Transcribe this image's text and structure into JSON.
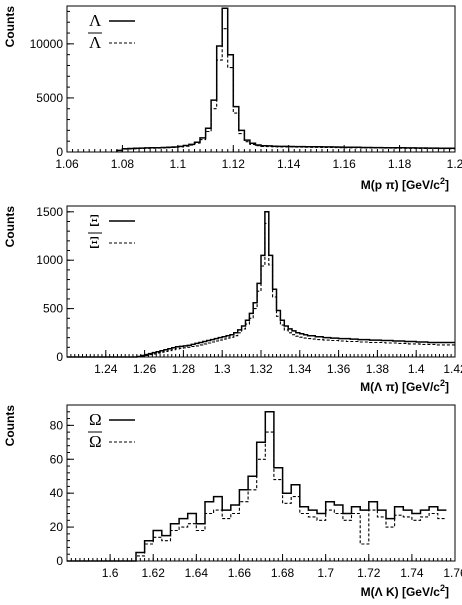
{
  "chart_data": [
    {
      "type": "histogram",
      "panel": "lambda",
      "xlabel": "M(p π) [GeV/c",
      "xlabel_sup": "2",
      "xlabel_end": "]",
      "ylabel": "Counts",
      "xlim": [
        1.06,
        1.2
      ],
      "ylim": [
        0,
        13500
      ],
      "xticks": [
        1.06,
        1.08,
        1.1,
        1.12,
        1.14,
        1.16,
        1.18,
        1.2
      ],
      "xtick_labels": [
        "1.06",
        "1.08",
        "1.1",
        "1.12",
        "1.14",
        "1.16",
        "1.18",
        "1.2"
      ],
      "yticks": [
        0,
        5000,
        10000
      ],
      "ytick_labels": [
        "0",
        "5000",
        "10000"
      ],
      "bin_width": 0.002,
      "x_start": 1.078,
      "legend": [
        {
          "symbol": "Λ",
          "overbar": false,
          "style": "solid"
        },
        {
          "symbol": "Λ",
          "overbar": true,
          "style": "dashed"
        }
      ],
      "series": [
        {
          "style": "solid",
          "values": [
            150,
            300,
            320,
            340,
            360,
            380,
            390,
            400,
            420,
            440,
            460,
            520,
            600,
            700,
            900,
            1300,
            2200,
            4800,
            9800,
            13300,
            9000,
            4200,
            2000,
            1100,
            800,
            650,
            580,
            560,
            540,
            520,
            520,
            510,
            500,
            500,
            490,
            480,
            480,
            470,
            470,
            460,
            450,
            440,
            440,
            430,
            420,
            420,
            410,
            410,
            400,
            400,
            390,
            390,
            380,
            380,
            370,
            370,
            360,
            360,
            350,
            350,
            340
          ]
        },
        {
          "style": "dashed",
          "values": [
            130,
            270,
            290,
            300,
            320,
            340,
            350,
            360,
            380,
            400,
            420,
            470,
            540,
            640,
            820,
            1150,
            1900,
            4000,
            8500,
            11400,
            7800,
            3600,
            1700,
            950,
            700,
            580,
            520,
            500,
            480,
            470,
            460,
            460,
            450,
            450,
            440,
            430,
            430,
            420,
            420,
            410,
            400,
            400,
            390,
            390,
            380,
            380,
            370,
            370,
            360,
            360,
            350,
            350,
            340,
            340,
            330,
            330,
            320,
            320,
            310,
            310,
            300
          ]
        }
      ]
    },
    {
      "type": "histogram",
      "panel": "xi",
      "xlabel": "M(Λ π) [GeV/c",
      "xlabel_sup": "2",
      "xlabel_end": "]",
      "ylabel": "Counts",
      "xlim": [
        1.22,
        1.42
      ],
      "ylim": [
        0,
        1560
      ],
      "xticks": [
        1.24,
        1.26,
        1.28,
        1.3,
        1.32,
        1.34,
        1.36,
        1.38,
        1.4,
        1.42
      ],
      "xtick_labels": [
        "1.24",
        "1.26",
        "1.28",
        "1.3",
        "1.32",
        "1.34",
        "1.36",
        "1.38",
        "1.4",
        "1.42"
      ],
      "yticks": [
        0,
        500,
        1000,
        1500
      ],
      "ytick_labels": [
        "0",
        "500",
        "1000",
        "1500"
      ],
      "bin_width": 0.002,
      "x_start": 1.22,
      "legend": [
        {
          "symbol": "Ξ",
          "overbar": false,
          "style": "solid"
        },
        {
          "symbol": "Ξ",
          "overbar": true,
          "style": "dashed"
        }
      ],
      "series": [
        {
          "style": "solid",
          "values": [
            0,
            0,
            0,
            0,
            0,
            0,
            0,
            0,
            0,
            0,
            0,
            0,
            0,
            0,
            0,
            0,
            0,
            0,
            5,
            15,
            25,
            35,
            45,
            55,
            65,
            75,
            85,
            95,
            105,
            110,
            115,
            120,
            130,
            140,
            150,
            160,
            170,
            180,
            190,
            200,
            210,
            220,
            230,
            250,
            280,
            320,
            380,
            450,
            560,
            760,
            1050,
            1500,
            1050,
            700,
            480,
            380,
            320,
            290,
            270,
            250,
            240,
            230,
            220,
            220,
            210,
            210,
            200,
            200,
            195,
            195,
            190,
            190,
            190,
            185,
            185,
            180,
            180,
            180,
            175,
            175,
            175,
            170,
            170,
            170,
            165,
            165,
            165,
            160,
            160,
            160,
            155,
            155,
            155,
            150,
            150,
            150,
            150,
            150,
            150,
            150
          ]
        },
        {
          "style": "dashed",
          "values": [
            0,
            0,
            0,
            0,
            0,
            0,
            0,
            0,
            0,
            0,
            0,
            0,
            0,
            0,
            0,
            0,
            0,
            0,
            2,
            8,
            15,
            25,
            32,
            40,
            50,
            58,
            66,
            75,
            85,
            90,
            95,
            100,
            108,
            115,
            125,
            135,
            145,
            155,
            165,
            175,
            185,
            195,
            205,
            220,
            250,
            290,
            340,
            400,
            500,
            680,
            940,
            1380,
            950,
            620,
            420,
            330,
            280,
            250,
            230,
            215,
            205,
            195,
            190,
            185,
            180,
            180,
            175,
            175,
            170,
            170,
            165,
            165,
            160,
            160,
            160,
            155,
            155,
            155,
            150,
            150,
            150,
            150,
            145,
            145,
            145,
            140,
            140,
            140,
            135,
            135,
            135,
            130,
            130,
            130,
            130,
            125,
            125,
            125,
            125,
            125,
            125
          ]
        }
      ]
    },
    {
      "type": "histogram",
      "panel": "omega",
      "xlabel": "M(Λ K) [GeV/c",
      "xlabel_sup": "2",
      "xlabel_end": "]",
      "ylabel": "Counts",
      "xlim": [
        1.58,
        1.76
      ],
      "ylim": [
        0,
        92
      ],
      "xticks": [
        1.6,
        1.62,
        1.64,
        1.66,
        1.68,
        1.7,
        1.72,
        1.74,
        1.76
      ],
      "xtick_labels": [
        "1.6",
        "1.62",
        "1.64",
        "1.66",
        "1.68",
        "1.7",
        "1.72",
        "1.74",
        "1.76"
      ],
      "yticks": [
        0,
        20,
        40,
        60,
        80
      ],
      "ytick_labels": [
        "0",
        "20",
        "40",
        "60",
        "80"
      ],
      "bin_width": 0.004,
      "x_start": 1.58,
      "legend": [
        {
          "symbol": "Ω",
          "overbar": false,
          "style": "solid"
        },
        {
          "symbol": "Ω",
          "overbar": true,
          "style": "dashed"
        }
      ],
      "series": [
        {
          "style": "solid",
          "values": [
            0,
            0,
            0,
            0,
            0,
            0,
            0,
            0,
            5,
            12,
            18,
            15,
            22,
            25,
            28,
            22,
            35,
            38,
            30,
            33,
            42,
            50,
            70,
            88,
            55,
            40,
            45,
            32,
            30,
            28,
            35,
            33,
            28,
            32,
            30,
            35,
            30,
            25,
            32,
            30,
            28,
            30,
            32,
            30
          ]
        },
        {
          "style": "dashed",
          "values": [
            0,
            0,
            0,
            0,
            0,
            0,
            0,
            0,
            3,
            10,
            14,
            12,
            18,
            20,
            22,
            18,
            28,
            30,
            25,
            28,
            35,
            42,
            60,
            76,
            48,
            34,
            38,
            28,
            26,
            24,
            30,
            28,
            24,
            28,
            10,
            30,
            26,
            20,
            27,
            26,
            24,
            26,
            28,
            25
          ]
        }
      ]
    }
  ]
}
